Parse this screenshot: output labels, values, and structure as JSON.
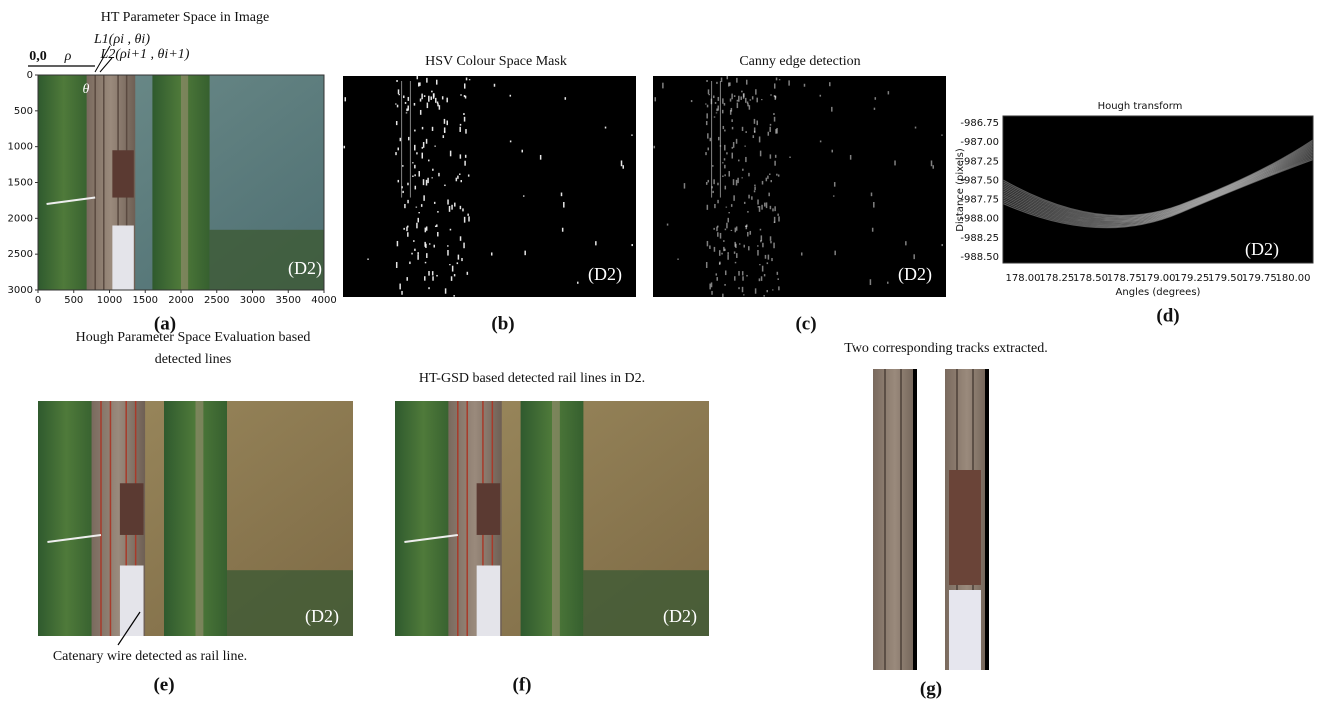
{
  "panels": [
    {
      "label": "(a)",
      "title": "HT Parameter Space in Image",
      "origin": "0,0",
      "rho": "ρ",
      "theta": "θ",
      "line1": "L1(ρi , θi)",
      "line2": "L2(ρi+1 , θi+1)",
      "tag": "(D2)",
      "xticks": [
        "0",
        "500",
        "1000",
        "1500",
        "2000",
        "2500",
        "3000",
        "3500",
        "4000"
      ],
      "yticks": [
        "0",
        "500",
        "1000",
        "1500",
        "2000",
        "2500",
        "3000"
      ]
    },
    {
      "label": "(b)",
      "title": "HSV Colour Space Mask",
      "tag": "(D2)"
    },
    {
      "label": "(c)",
      "title": "Canny edge detection",
      "tag": "(D2)"
    },
    {
      "label": "(d)",
      "title": "Hough transform",
      "tag": "(D2)",
      "xlabel": "Angles (degrees)",
      "ylabel": "Distance (pixels)",
      "xticks": [
        "178.00",
        "178.25",
        "178.50",
        "178.75",
        "179.00",
        "179.25",
        "179.50",
        "179.75",
        "180.00"
      ],
      "yticks": [
        "-986.75",
        "-987.00",
        "-987.25",
        "-987.50",
        "-987.75",
        "-988.00",
        "-988.25",
        "-988.50"
      ]
    },
    {
      "label": "(e)",
      "title": [
        "Hough Parameter Space Evaluation based",
        "detected lines"
      ],
      "tag": "(D2)",
      "note": "Catenary wire detected as rail line."
    },
    {
      "label": "(f)",
      "title": "HT-GSD based detected rail lines in D2.",
      "tag": "(D2)"
    },
    {
      "label": "(g)",
      "title": "Two corresponding tracks extracted."
    }
  ]
}
